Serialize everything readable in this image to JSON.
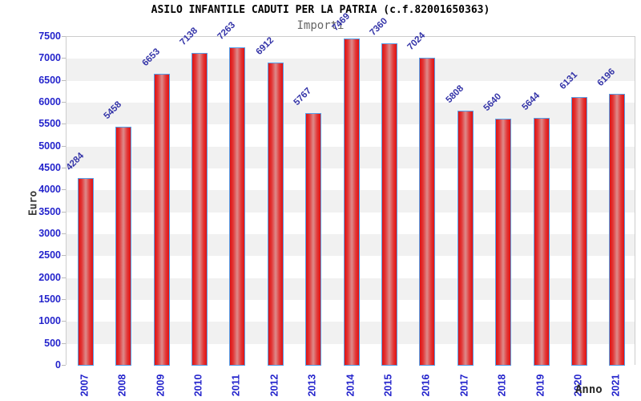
{
  "header": {
    "title": "ASILO INFANTILE CADUTI PER LA PATRIA (c.f.82001650363)",
    "subtitle": "Importi"
  },
  "chart_data": {
    "type": "bar",
    "title": "ASILO INFANTILE CADUTI PER LA PATRIA (c.f.82001650363)",
    "subtitle": "Importi",
    "xlabel": "Anno",
    "ylabel": "Euro",
    "categories": [
      "2007",
      "2008",
      "2009",
      "2010",
      "2011",
      "2012",
      "2013",
      "2014",
      "2015",
      "2016",
      "2017",
      "2018",
      "2019",
      "2020",
      "2021"
    ],
    "values": [
      4284,
      5458,
      6653,
      7138,
      7263,
      6912,
      5767,
      7469,
      7360,
      7024,
      5808,
      5640,
      5644,
      6131,
      6196
    ],
    "ylim": [
      0,
      7500
    ],
    "ytick_step": 500,
    "ytick_labels": [
      "0",
      "500",
      "1000",
      "1500",
      "2000",
      "2500",
      "3000",
      "3500",
      "4000",
      "4500",
      "5000",
      "5500",
      "6000",
      "6500",
      "7000",
      "7500"
    ],
    "grid": "horizontal-bands-alternating",
    "legend_position": "none",
    "colors": {
      "bar_fill_edge": "#e01212",
      "bar_fill_center": "#dd8b8b",
      "bar_border": "#55a0ea",
      "tick_label": "#2424cc",
      "value_label": "#3434a8",
      "band_light": "#ffffff",
      "band_dark": "#f1f1f1",
      "plot_border": "#cccccc",
      "title": "#000000",
      "subtitle": "#666666",
      "axis_title": "#3a3a3a"
    }
  }
}
